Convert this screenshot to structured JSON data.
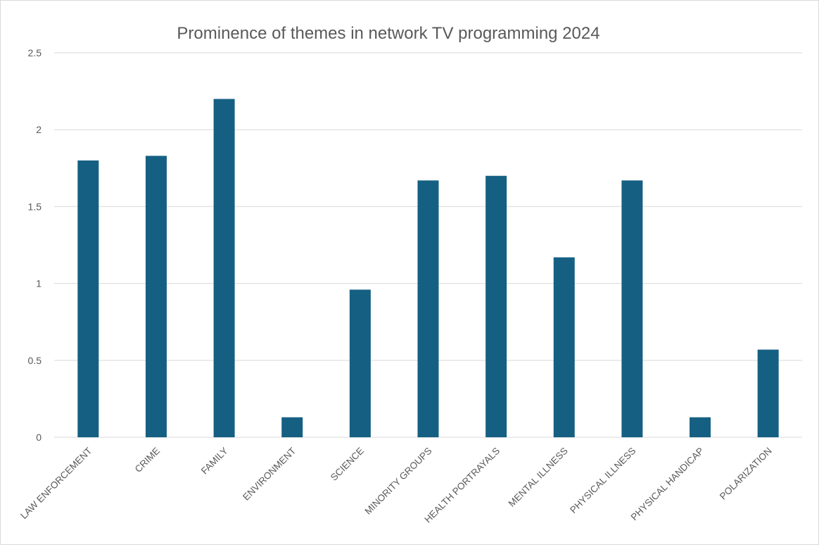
{
  "chart_data": {
    "type": "bar",
    "title": "Prominence of themes in network TV programming 2024",
    "xlabel": "",
    "ylabel": "",
    "categories": [
      "LAW ENFORCEMENT",
      "CRIME",
      "FAMILY",
      "ENVIRONMENT",
      "SCIENCE",
      "MINORITY GROUPS",
      "HEALTH PORTRAYALS",
      "MENTAL ILLNESS",
      "PHYSICAL ILLNESS",
      "PHYSICAL HANDICAP",
      "POLARIZATION"
    ],
    "values": [
      1.8,
      1.83,
      2.2,
      0.13,
      0.96,
      1.67,
      1.7,
      1.17,
      1.67,
      0.13,
      0.57
    ],
    "ylim": [
      0,
      2.5
    ],
    "yticks": [
      "0",
      "0.5",
      "1",
      "1.5",
      "2",
      "2.5"
    ],
    "grid": true,
    "legend": "none",
    "colors": {
      "bar": "#156082",
      "grid": "#d9d9d9",
      "text": "#595959"
    }
  }
}
